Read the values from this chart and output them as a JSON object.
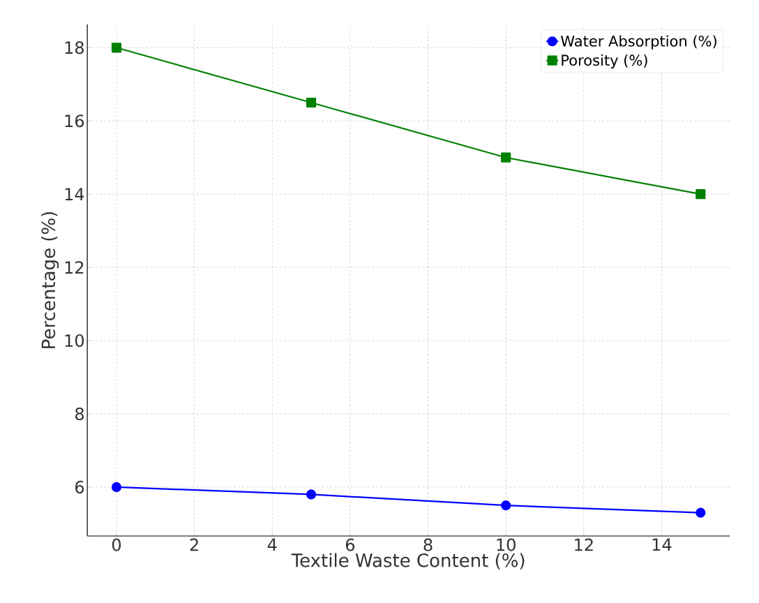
{
  "chart_data": {
    "type": "line",
    "xlabel": "Textile Waste Content (%)",
    "ylabel": "Percentage (%)",
    "x": [
      0,
      5,
      10,
      15
    ],
    "series": [
      {
        "name": "Water Absorption (%)",
        "color": "#0000ff",
        "values": [
          6,
          5.8,
          5.5,
          5.3
        ],
        "marker": "circle"
      },
      {
        "name": "Porosity (%)",
        "color": "#008000",
        "values": [
          18,
          16.5,
          15,
          14
        ],
        "marker": "square"
      }
    ],
    "xlim": [
      -0.75,
      15.75
    ],
    "ylim": [
      4.665,
      18.635
    ],
    "xticks": [
      0,
      2,
      4,
      6,
      8,
      10,
      12,
      14
    ],
    "yticks": [
      6,
      8,
      10,
      12,
      14,
      16,
      18
    ],
    "grid": true,
    "legend": "top right",
    "line_style": "solid"
  }
}
